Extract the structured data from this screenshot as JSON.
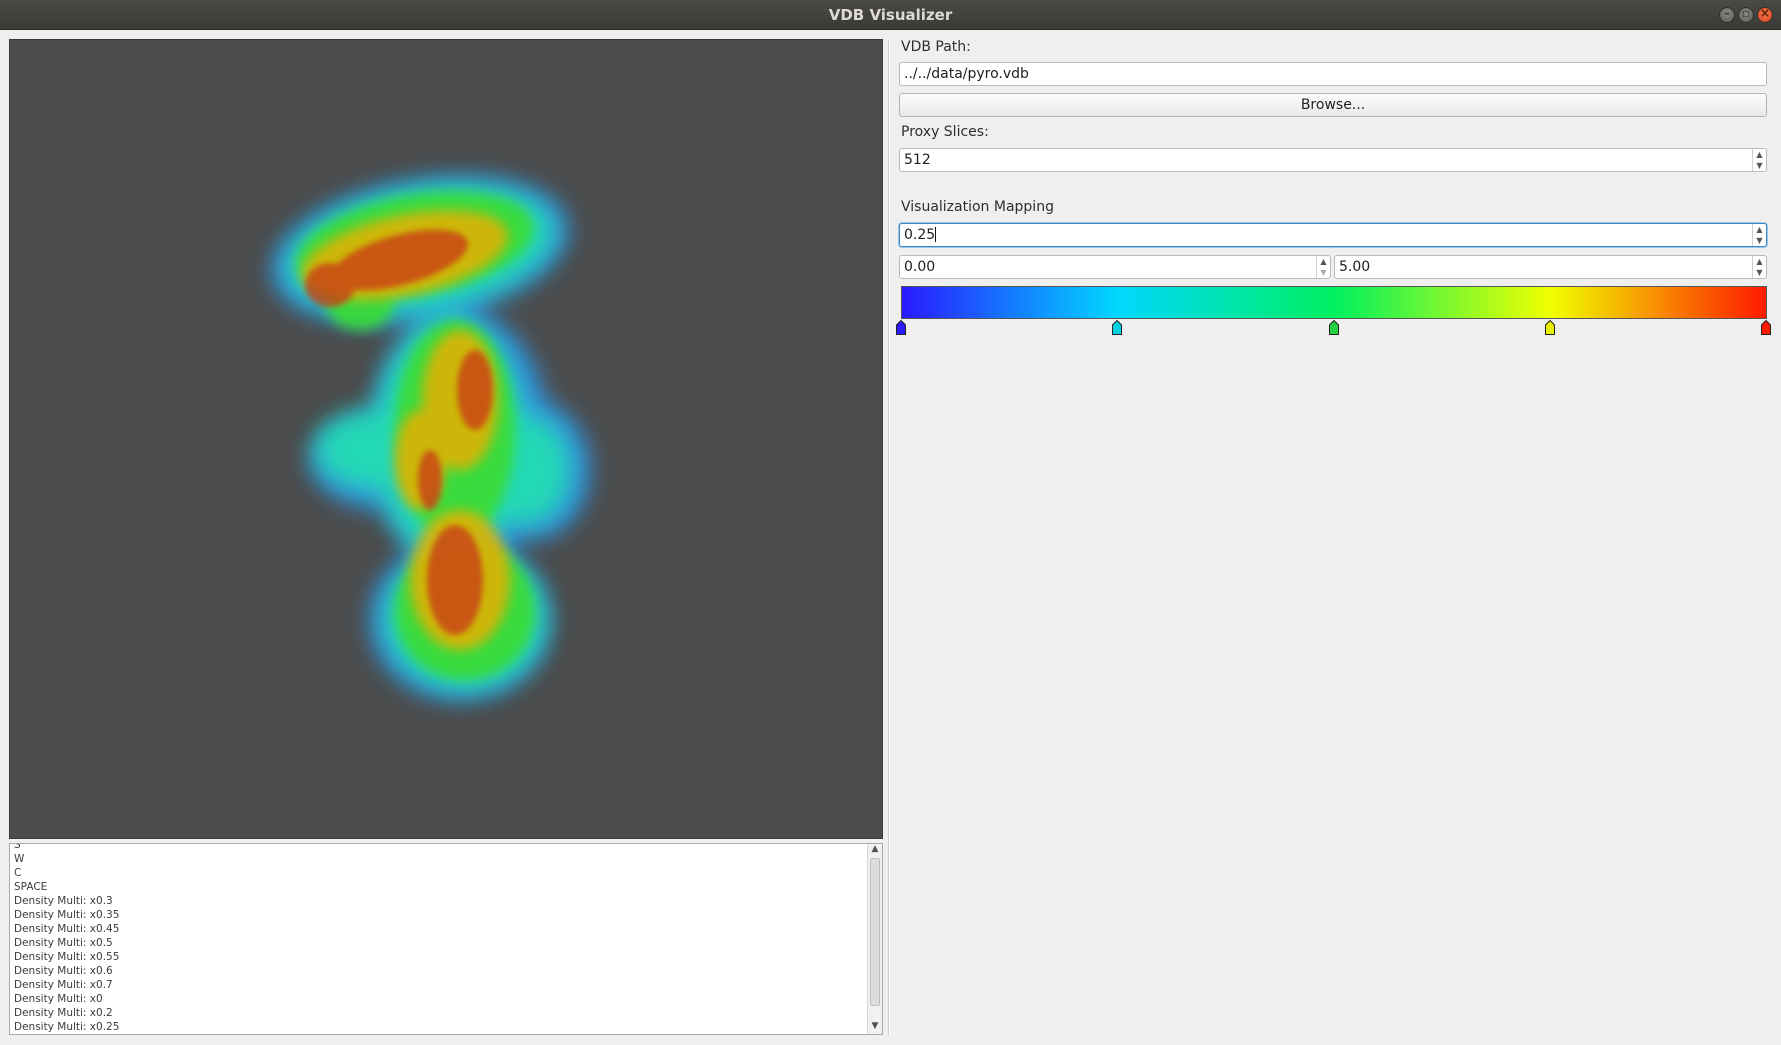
{
  "window": {
    "title": "VDB Visualizer"
  },
  "log": {
    "lines": [
      "S",
      "W",
      "C",
      "SPACE",
      "Density Multi: x0.3",
      "Density Multi: x0.35",
      "Density Multi: x0.45",
      "Density Multi: x0.5",
      "Density Multi: x0.55",
      "Density Multi: x0.6",
      "Density Multi: x0.7",
      "Density Multi: x0",
      "Density Multi: x0.2",
      "Density Multi: x0.25"
    ]
  },
  "panel": {
    "vdb_path_label": "VDB Path:",
    "vdb_path_value": "../../data/pyro.vdb",
    "browse_label": "Browse...",
    "proxy_slices_label": "Proxy Slices:",
    "proxy_slices_value": "512",
    "mapping_label": "Visualization Mapping",
    "density_value": "0.25",
    "range_min": "0.00",
    "range_max": "5.00",
    "color_stops": [
      {
        "position": 0.0,
        "color": "#2a1aff"
      },
      {
        "position": 0.25,
        "color": "#00d0e0"
      },
      {
        "position": 0.5,
        "color": "#22d040"
      },
      {
        "position": 0.75,
        "color": "#e8f000"
      },
      {
        "position": 1.0,
        "color": "#ff1a00"
      }
    ]
  },
  "viewport": {
    "background": "#4c4c4c"
  }
}
